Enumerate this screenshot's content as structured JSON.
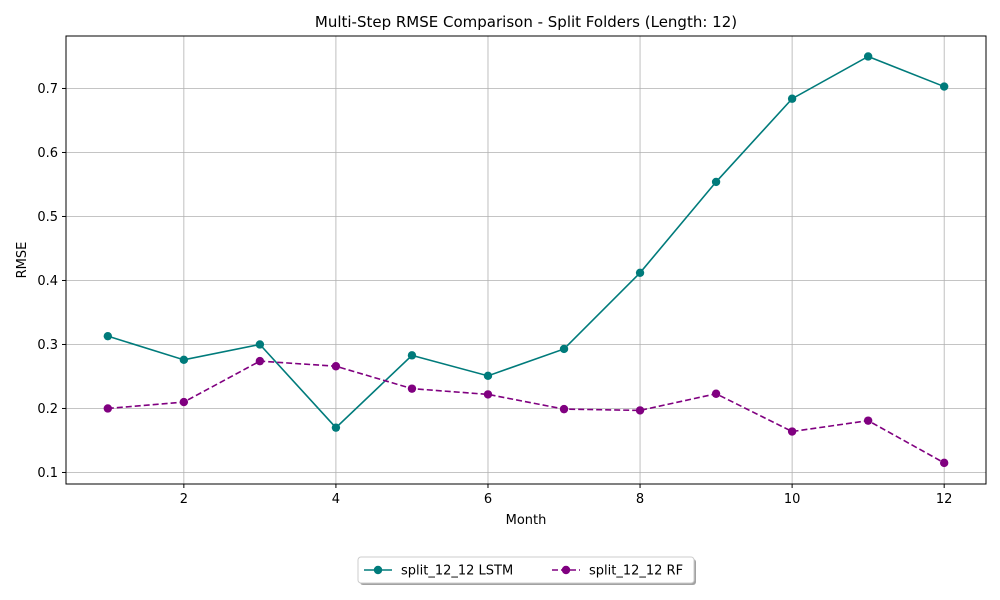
{
  "chart_data": {
    "type": "line",
    "title": "Multi-Step RMSE Comparison - Split Folders (Length: 12)",
    "xlabel": "Month",
    "ylabel": "RMSE",
    "xlim": [
      0.45,
      12.55
    ],
    "ylim": [
      0.082,
      0.782
    ],
    "x_ticks": [
      "2",
      "4",
      "6",
      "8",
      "10",
      "12"
    ],
    "y_ticks": [
      "0.1",
      "0.2",
      "0.3",
      "0.4",
      "0.5",
      "0.6",
      "0.7"
    ],
    "grid": true,
    "legend_position": "bottom-center",
    "x": [
      1,
      2,
      3,
      4,
      5,
      6,
      7,
      8,
      9,
      10,
      11,
      12
    ],
    "series": [
      {
        "name": "split_12_12 LSTM",
        "color": "#007b7b",
        "line_style": "solid",
        "marker": "circle",
        "values": [
          0.313,
          0.276,
          0.3,
          0.17,
          0.283,
          0.251,
          0.293,
          0.412,
          0.554,
          0.684,
          0.75,
          0.703
        ]
      },
      {
        "name": "split_12_12 RF",
        "color": "#800080",
        "line_style": "dashed",
        "marker": "circle",
        "values": [
          0.2,
          0.21,
          0.274,
          0.266,
          0.231,
          0.222,
          0.199,
          0.197,
          0.223,
          0.164,
          0.181,
          0.115
        ]
      }
    ]
  }
}
